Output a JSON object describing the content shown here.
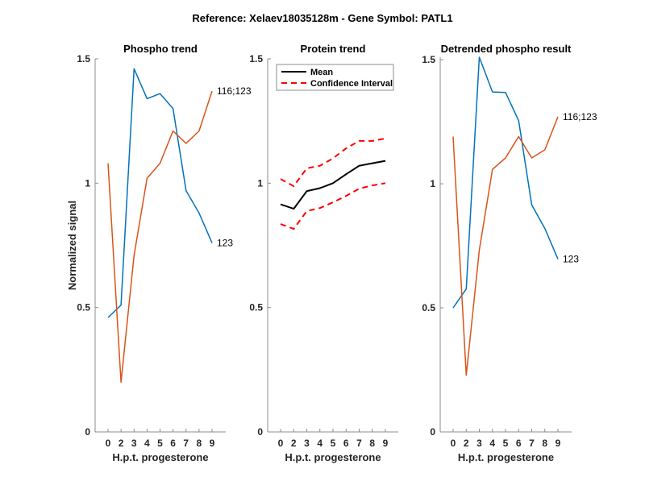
{
  "figure": {
    "suptitle": "Reference:  Xelaev18035128m - Gene Symbol:  PATL1"
  },
  "chart_data": [
    {
      "type": "line",
      "title": "Phospho trend",
      "xlabel": "H.p.t. progesterone",
      "ylabel": "Normalized signal",
      "categories": [
        "0",
        "2",
        "3",
        "4",
        "5",
        "6",
        "7",
        "8",
        "9"
      ],
      "ylim": [
        0,
        1.5
      ],
      "yticks": [
        0,
        0.5,
        1,
        1.5
      ],
      "ytick_labels": [
        "0",
        "0.5",
        "1",
        "1.5"
      ],
      "series": [
        {
          "name": "123",
          "color": "#0072BD",
          "style": "solid",
          "end_label": "123",
          "values": [
            0.46,
            0.51,
            1.46,
            1.34,
            1.36,
            1.3,
            0.97,
            0.88,
            0.76
          ]
        },
        {
          "name": "116;123",
          "color": "#D95319",
          "style": "solid",
          "end_label": "116;123",
          "values": [
            1.08,
            0.2,
            0.71,
            1.02,
            1.08,
            1.21,
            1.16,
            1.21,
            1.37
          ]
        }
      ]
    },
    {
      "type": "line",
      "title": "Protein trend",
      "xlabel": "H.p.t. progesterone",
      "ylabel": "",
      "categories": [
        "0",
        "2",
        "3",
        "4",
        "5",
        "6",
        "7",
        "8",
        "9"
      ],
      "ylim": [
        0,
        1.5
      ],
      "yticks": [
        0,
        0.5,
        1,
        1.5
      ],
      "ytick_labels": [
        "0",
        "0.5",
        "1",
        "1.5"
      ],
      "legend": {
        "position": "top-left",
        "entries": [
          "Mean",
          "Confidence Interval"
        ]
      },
      "series": [
        {
          "name": "Mean",
          "color": "#000000",
          "style": "solid",
          "legend": true,
          "values": [
            0.915,
            0.897,
            0.968,
            0.98,
            1.0,
            1.036,
            1.07,
            1.08,
            1.09
          ]
        },
        {
          "name": "Confidence Interval",
          "color": "#FF0000",
          "style": "dashed",
          "legend": true,
          "values": [
            1.017,
            0.988,
            1.06,
            1.07,
            1.1,
            1.14,
            1.17,
            1.17,
            1.18
          ]
        },
        {
          "name": "Confidence Interval (lower)",
          "color": "#FF0000",
          "style": "dashed",
          "legend": false,
          "values": [
            0.836,
            0.816,
            0.888,
            0.9,
            0.923,
            0.949,
            0.978,
            0.991,
            1.0
          ]
        }
      ]
    },
    {
      "type": "line",
      "title": "Detrended phospho result",
      "xlabel": "H.p.t. progesterone",
      "ylabel": "",
      "categories": [
        "0",
        "2",
        "3",
        "4",
        "5",
        "6",
        "7",
        "8",
        "9"
      ],
      "ylim": [
        0,
        1.51
      ],
      "yticks": [
        0,
        0.5,
        1,
        1.5
      ],
      "ytick_labels": [
        "0",
        "0.5",
        "1",
        "1.5"
      ],
      "series": [
        {
          "name": "123",
          "color": "#0072BD",
          "style": "solid",
          "end_label": "123",
          "values": [
            0.5,
            0.576,
            1.51,
            1.37,
            1.368,
            1.254,
            0.915,
            0.82,
            0.697
          ]
        },
        {
          "name": "116;123",
          "color": "#D95319",
          "style": "solid",
          "end_label": "116;123",
          "values": [
            1.19,
            0.228,
            0.733,
            1.058,
            1.104,
            1.19,
            1.104,
            1.137,
            1.27
          ]
        }
      ]
    }
  ]
}
